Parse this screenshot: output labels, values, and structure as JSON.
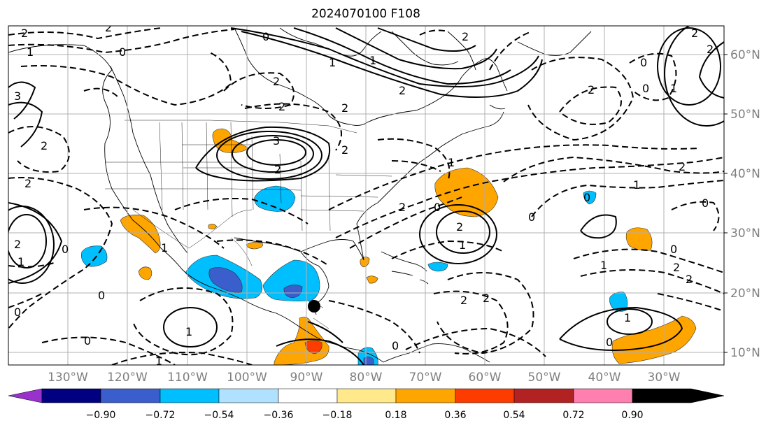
{
  "title": "2024070100 F108",
  "map": {
    "lat_labels": [
      "60°N",
      "50°N",
      "40°N",
      "30°N",
      "20°N",
      "10°N"
    ],
    "lon_labels": [
      "130°W",
      "120°W",
      "110°W",
      "100°W",
      "90°W",
      "80°W",
      "70°W",
      "60°W",
      "50°W",
      "40°W",
      "30°W"
    ],
    "contour_labels": [
      {
        "text": "2"
      },
      {
        "text": "0"
      },
      {
        "text": "1"
      },
      {
        "text": "2"
      },
      {
        "text": "0"
      },
      {
        "text": "2"
      },
      {
        "text": "2"
      },
      {
        "text": "2"
      },
      {
        "text": "3"
      },
      {
        "text": "2"
      },
      {
        "text": "3"
      },
      {
        "text": "2"
      },
      {
        "text": "2"
      },
      {
        "text": "1"
      },
      {
        "text": "0"
      },
      {
        "text": "1"
      },
      {
        "text": "1"
      },
      {
        "text": "2"
      },
      {
        "text": "2"
      },
      {
        "text": "2"
      },
      {
        "text": "1"
      },
      {
        "text": "0"
      },
      {
        "text": "2"
      },
      {
        "text": "0"
      },
      {
        "text": "2"
      },
      {
        "text": "1"
      },
      {
        "text": "0"
      },
      {
        "text": "2"
      },
      {
        "text": "2"
      },
      {
        "text": "2"
      },
      {
        "text": "2"
      },
      {
        "text": "1"
      },
      {
        "text": "0"
      },
      {
        "text": "0"
      },
      {
        "text": "2"
      },
      {
        "text": "2"
      },
      {
        "text": "1"
      },
      {
        "text": "0"
      },
      {
        "text": "1"
      },
      {
        "text": "2"
      },
      {
        "text": "1"
      },
      {
        "text": "0"
      },
      {
        "text": "0"
      },
      {
        "text": "1"
      },
      {
        "text": "0"
      },
      {
        "text": "0"
      },
      {
        "text": "0"
      },
      {
        "text": "2"
      },
      {
        "text": "1"
      },
      {
        "text": "0"
      },
      {
        "text": "2"
      },
      {
        "text": "1"
      }
    ]
  },
  "colorbar": {
    "ticks": [
      "−0.90",
      "−0.72",
      "−0.54",
      "−0.36",
      "−0.18",
      "0.18",
      "0.36",
      "0.54",
      "0.72",
      "0.90"
    ],
    "colors": [
      "#9932cc",
      "#000080",
      "#3a5fcd",
      "#00bfff",
      "#b0e2ff",
      "#ffffff",
      "#ffe98a",
      "#ffa500",
      "#ff3c00",
      "#b22222",
      "#ff7fae"
    ]
  }
}
